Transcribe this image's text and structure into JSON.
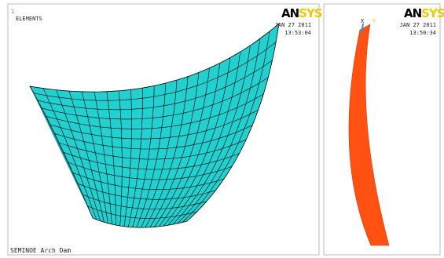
{
  "left_panel": {
    "window_number": "1",
    "plot_label": "ELEMENTS",
    "logo": {
      "part1": "AN",
      "part2": "SYS"
    },
    "date": "JAN 27 2011",
    "time": "13:53:04",
    "caption": "SEMINOE Arch Dam"
  },
  "right_panel": {
    "logo": {
      "part1": "AN",
      "part2": "SYS"
    },
    "date": "JAN 27 2011",
    "time": "13:50:34",
    "triad": {
      "x": "X",
      "y": "Y"
    }
  }
}
